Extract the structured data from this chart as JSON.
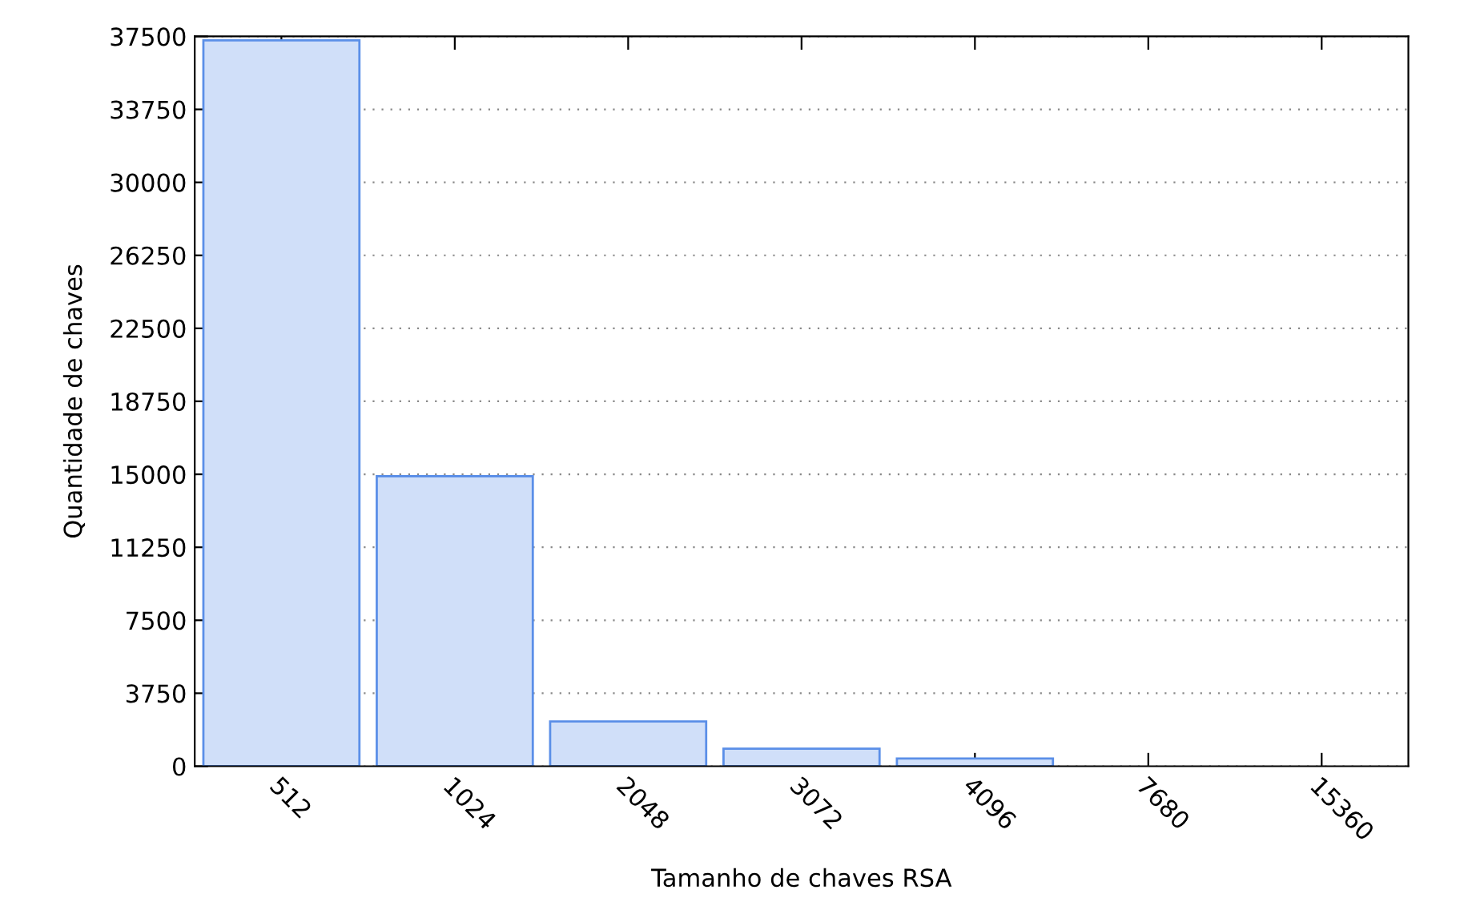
{
  "chart_data": {
    "type": "bar",
    "xlabel": "Tamanho de chaves RSA",
    "ylabel": "Quantidade de chaves",
    "categories": [
      "512",
      "1024",
      "2048",
      "3072",
      "4096",
      "7680",
      "15360"
    ],
    "series": [
      {
        "color": "#d0dff9",
        "values": [
          37300,
          14900,
          2300,
          900,
          400,
          null,
          null
        ]
      }
    ],
    "ylim": [
      0,
      37500
    ],
    "yticks": [
      0,
      3750,
      7500,
      11250,
      15000,
      18750,
      22500,
      26250,
      30000,
      33750,
      37500
    ],
    "grid": "y"
  }
}
